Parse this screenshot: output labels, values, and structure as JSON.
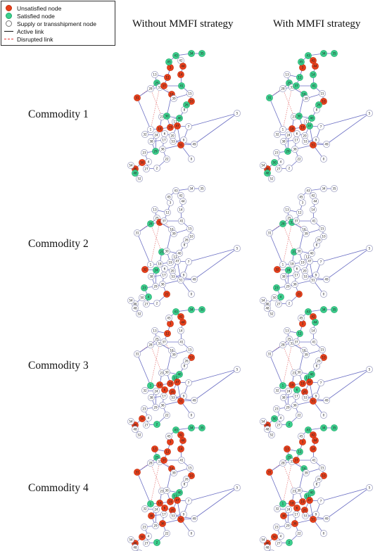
{
  "legend": {
    "items": [
      {
        "label": "Unsatisfied node",
        "kind": "node",
        "color": "#e8401c"
      },
      {
        "label": "Satisfied node",
        "kind": "node",
        "color": "#3ccf8e"
      },
      {
        "label": "Supply or transshipment node",
        "kind": "node",
        "color": "#ffffff"
      },
      {
        "label": "Active link",
        "kind": "solid-line",
        "color": "#111111"
      },
      {
        "label": "Disrupted link",
        "kind": "dashed-line",
        "color": "#e53935"
      }
    ]
  },
  "columns": [
    "Without MMFI strategy",
    "With MMFI strategy"
  ],
  "rows": [
    "Commodity 1",
    "Commodity 2",
    "Commodity 3",
    "Commodity 4"
  ],
  "colors": {
    "unsatisfied": "#e8401c",
    "satisfied": "#3ccf8e",
    "neutral": "#ffffff",
    "link": "#6b6fc4",
    "disrupted": "#e57373"
  },
  "panels": [
    {
      "unsatisfied": [
        "37",
        "16",
        "44",
        "14",
        "3",
        "12",
        "31",
        "10",
        "19",
        "18",
        "51",
        "50",
        "47",
        "46"
      ],
      "satisfied": [
        "34",
        "35",
        "43",
        "45",
        "25",
        "26",
        "30",
        "29",
        "40",
        "48",
        "41"
      ]
    },
    {
      "unsatisfied": [
        "42",
        "44",
        "3",
        "10",
        "19",
        "18",
        "51",
        "46"
      ],
      "satisfied": [
        "34",
        "35",
        "43",
        "45",
        "25",
        "26",
        "30",
        "29",
        "40",
        "48",
        "41",
        "37",
        "16",
        "14",
        "12",
        "31",
        "50",
        "47"
      ]
    },
    {
      "unsatisfied": [
        "32",
        "33",
        "22"
      ],
      "satisfied": [
        "28",
        "4",
        "21",
        "24",
        "23"
      ]
    },
    {
      "unsatisfied": [
        "22",
        "32"
      ],
      "satisfied": [
        "33",
        "21",
        "28",
        "4",
        "24",
        "23"
      ]
    },
    {
      "unsatisfied": [
        "42",
        "44",
        "3",
        "12",
        "10",
        "19",
        "18",
        "51",
        "50",
        "46",
        "47",
        "6",
        "20"
      ],
      "satisfied": [
        "34",
        "35",
        "43",
        "40",
        "2",
        "11",
        "1"
      ]
    },
    {
      "unsatisfied": [
        "42",
        "3",
        "10",
        "19",
        "18",
        "51",
        "46",
        "47",
        "20"
      ],
      "satisfied": [
        "34",
        "35",
        "43",
        "40",
        "2",
        "11",
        "1",
        "12",
        "50",
        "6",
        "44"
      ]
    },
    {
      "unsatisfied": [
        "42",
        "44",
        "3",
        "14",
        "12",
        "31",
        "10",
        "19",
        "18",
        "51",
        "50",
        "46",
        "47",
        "6",
        "20",
        "36",
        "37",
        "38",
        "16",
        "13"
      ],
      "satisfied": [
        "34",
        "35",
        "43",
        "40",
        "2",
        "11",
        "1",
        "25"
      ]
    },
    {
      "unsatisfied": [
        "42",
        "44",
        "3",
        "14",
        "31",
        "10",
        "19",
        "18",
        "51",
        "50",
        "46",
        "47",
        "6",
        "20",
        "36",
        "37",
        "38",
        "13"
      ],
      "satisfied": [
        "34",
        "35",
        "43",
        "40",
        "2",
        "11",
        "1",
        "25",
        "12",
        "16"
      ]
    }
  ]
}
